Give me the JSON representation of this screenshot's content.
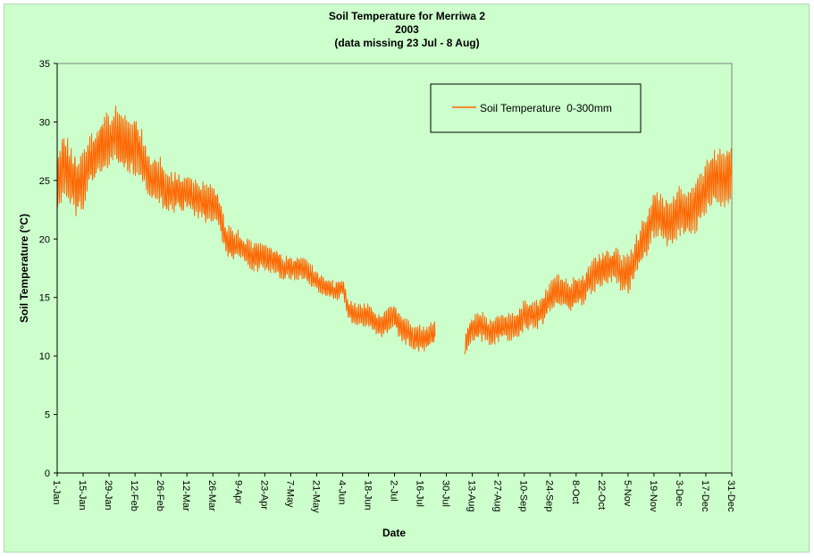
{
  "chart_data": {
    "type": "line",
    "title": "Soil Temperature for Merriwa 2",
    "subtitle": "2003",
    "note": "(data missing 23 Jul - 8 Aug)",
    "xlabel": "Date",
    "ylabel": "Soil Temperature (°C)",
    "ylim": [
      0,
      35
    ],
    "yticks": [
      0,
      5,
      10,
      15,
      20,
      25,
      30,
      35
    ],
    "xlim": [
      "1-Jan",
      "31-Dec"
    ],
    "xticks": [
      "1-Jan",
      "15-Jan",
      "29-Jan",
      "12-Feb",
      "26-Feb",
      "12-Mar",
      "26-Mar",
      "9-Apr",
      "23-Apr",
      "7-May",
      "21-May",
      "4-Jun",
      "18-Jun",
      "2-Jul",
      "16-Jul",
      "30-Jul",
      "13-Aug",
      "27-Aug",
      "10-Sep",
      "24-Sep",
      "8-Oct",
      "22-Oct",
      "5-Nov",
      "19-Nov",
      "3-Dec",
      "17-Dec",
      "31-Dec"
    ],
    "xtick_days": [
      1,
      15,
      29,
      43,
      57,
      71,
      85,
      99,
      113,
      127,
      141,
      155,
      169,
      183,
      197,
      211,
      225,
      239,
      253,
      267,
      281,
      295,
      309,
      323,
      337,
      351,
      365
    ],
    "grid": false,
    "legend_position": "top-right",
    "colors": {
      "series": "#ff6600",
      "background": "#ccffcc",
      "plot_background": "#ccffcc"
    },
    "series": [
      {
        "name": "Soil Temperature  0-300mm",
        "day_of_year": [
          1,
          4,
          8,
          11,
          15,
          18,
          22,
          25,
          29,
          32,
          36,
          39,
          43,
          46,
          50,
          53,
          57,
          60,
          64,
          67,
          71,
          74,
          78,
          81,
          85,
          88,
          92,
          95,
          99,
          102,
          106,
          109,
          113,
          116,
          120,
          123,
          127,
          130,
          134,
          137,
          141,
          144,
          148,
          151,
          155,
          158,
          162,
          165,
          169,
          172,
          176,
          179,
          183,
          186,
          190,
          193,
          197,
          201,
          204,
          221,
          225,
          228,
          232,
          235,
          239,
          242,
          246,
          249,
          253,
          256,
          260,
          263,
          267,
          270,
          274,
          277,
          281,
          284,
          288,
          291,
          295,
          298,
          302,
          305,
          309,
          312,
          316,
          319,
          323,
          326,
          330,
          333,
          337,
          340,
          344,
          347,
          351,
          354,
          358,
          361,
          365
        ],
        "daily_mean": [
          24.5,
          26.5,
          25.5,
          24.5,
          25.0,
          26.8,
          27.0,
          28.0,
          28.5,
          29.0,
          28.2,
          28.0,
          28.0,
          27.5,
          25.5,
          25.0,
          25.0,
          24.0,
          24.0,
          24.0,
          24.0,
          23.5,
          23.5,
          23.0,
          23.0,
          22.5,
          20.0,
          19.5,
          19.5,
          19.0,
          18.5,
          18.5,
          18.5,
          18.2,
          18.0,
          17.5,
          17.5,
          17.5,
          17.5,
          17.0,
          16.5,
          16.0,
          15.8,
          15.5,
          16.0,
          14.0,
          13.5,
          13.5,
          13.5,
          13.0,
          12.5,
          13.0,
          13.5,
          12.5,
          12.0,
          11.5,
          11.5,
          11.5,
          12.0,
          11.0,
          12.5,
          12.5,
          12.5,
          12.0,
          12.5,
          12.5,
          12.5,
          12.5,
          13.5,
          13.5,
          13.5,
          14.0,
          15.0,
          15.5,
          15.5,
          15.0,
          15.5,
          15.5,
          16.5,
          17.0,
          17.5,
          17.5,
          18.0,
          17.0,
          17.0,
          18.0,
          19.5,
          20.5,
          22.0,
          22.0,
          21.5,
          21.5,
          22.5,
          22.0,
          22.5,
          23.0,
          24.5,
          25.0,
          25.5,
          25.0,
          26.0
        ],
        "daily_range": [
          2.0,
          2.2,
          2.0,
          1.8,
          1.8,
          1.6,
          1.6,
          1.8,
          1.8,
          1.8,
          1.8,
          1.8,
          1.8,
          1.6,
          1.4,
          1.4,
          1.4,
          1.4,
          1.2,
          1.2,
          1.2,
          1.2,
          1.2,
          1.2,
          1.2,
          1.0,
          1.0,
          1.0,
          0.9,
          0.9,
          0.9,
          0.9,
          0.8,
          0.8,
          0.8,
          0.8,
          0.7,
          0.7,
          0.7,
          0.7,
          0.7,
          0.6,
          0.6,
          0.6,
          0.6,
          0.7,
          0.7,
          0.7,
          0.7,
          0.7,
          0.7,
          0.8,
          0.8,
          0.8,
          0.8,
          0.8,
          0.8,
          0.8,
          0.8,
          0.8,
          0.9,
          0.9,
          0.9,
          0.9,
          0.9,
          0.9,
          0.9,
          0.9,
          0.9,
          0.9,
          0.9,
          0.9,
          1.0,
          1.0,
          1.0,
          1.0,
          1.0,
          1.0,
          1.0,
          1.1,
          1.1,
          1.1,
          1.2,
          1.2,
          1.2,
          1.2,
          1.3,
          1.4,
          1.5,
          1.5,
          1.5,
          1.5,
          1.6,
          1.6,
          1.6,
          1.6,
          1.7,
          1.7,
          1.8,
          1.8,
          1.8
        ],
        "missing_days": [
          [
            205,
            220
          ]
        ]
      }
    ]
  }
}
